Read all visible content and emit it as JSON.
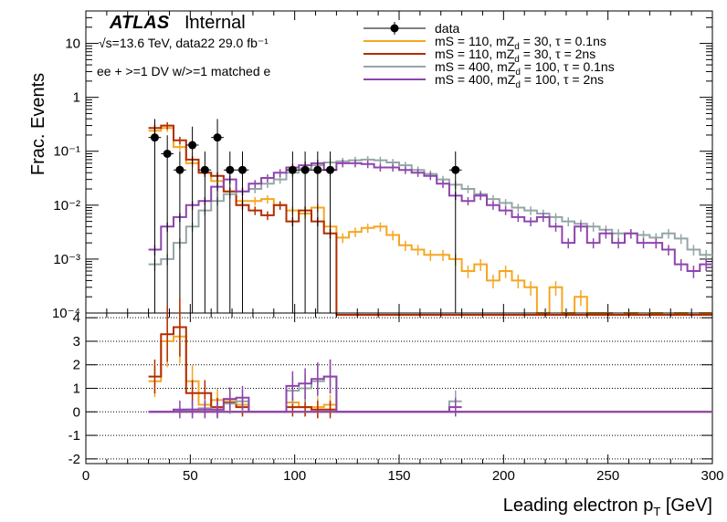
{
  "labels": {
    "atlas": "ATLAS",
    "internal": "Internal",
    "energy_lumi": "√s=13.6 TeV, data22 29.0 fb⁻¹",
    "selection": "ee + >=1 DV w/>=1 matched e",
    "ylabel": "Frac. Events",
    "xlabel": "Leading electron p",
    "xlabel_sub": "T",
    "xlabel_unit": " [GeV]"
  },
  "chart_data": [
    {
      "type": "line",
      "panel": "main",
      "ylabel": "Frac. Events",
      "log_y": true,
      "xlim": [
        0,
        300
      ],
      "ylim": [
        0.0001,
        40
      ],
      "yticks": [
        {
          "v": 0.0001,
          "label": "10⁻⁴"
        },
        {
          "v": 0.001,
          "label": "10⁻³"
        },
        {
          "v": 0.01,
          "label": "10⁻²"
        },
        {
          "v": 0.1,
          "label": "10⁻¹"
        },
        {
          "v": 1,
          "label": "1"
        },
        {
          "v": 10,
          "label": "10"
        }
      ],
      "bin_width": 6,
      "legend_position": "top-right",
      "series": [
        {
          "name": "data",
          "kind": "points",
          "color": "#000000",
          "x": [
            33,
            39,
            45,
            51,
            57,
            63,
            69,
            75,
            99,
            105,
            111,
            117,
            177
          ],
          "y": [
            0.18,
            0.09,
            0.045,
            0.13,
            0.045,
            0.18,
            0.045,
            0.045,
            0.045,
            0.045,
            0.045,
            0.045,
            0.045
          ]
        },
        {
          "name": "mS = 110, mZd = 30, τ = 0.1ns",
          "legend_main": "mS = 110, mZ",
          "legend_sub": "d",
          "legend_rest": " = 30, τ = 0.1ns",
          "kind": "hist",
          "color": "#f5a623",
          "x": [
            33,
            39,
            45,
            51,
            57,
            63,
            69,
            75,
            81,
            87,
            93,
            99,
            105,
            111,
            117,
            123,
            129,
            135,
            141,
            147,
            153,
            159,
            165,
            171,
            177,
            183,
            189,
            195,
            201,
            207,
            213,
            219,
            225,
            231,
            237,
            243,
            249,
            255,
            261,
            267,
            273,
            279,
            285,
            291,
            297
          ],
          "y": [
            0.24,
            0.27,
            0.12,
            0.06,
            0.04,
            0.028,
            0.018,
            0.012,
            0.012,
            0.013,
            0.01,
            0.008,
            0.007,
            0.009,
            0.004,
            0.0025,
            0.0032,
            0.0038,
            0.004,
            0.0028,
            0.0018,
            0.0015,
            0.0012,
            0.0012,
            0.001,
            0.0006,
            0.0008,
            0.0004,
            0.0006,
            0.0004,
            0.0003,
            0.0001,
            0.0003,
            0.0001,
            0.0002,
            0.0001,
            0.0001,
            8e-05,
            0.0001,
            8e-05,
            0.0001,
            8e-05,
            0.0001,
            8e-05,
            0.0001
          ]
        },
        {
          "name": "mS = 110, mZd = 30, τ = 2ns",
          "legend_main": "mS = 110, mZ",
          "legend_sub": "d",
          "legend_rest": " = 30, τ = 2ns",
          "kind": "hist",
          "color": "#b32d00",
          "x": [
            33,
            39,
            45,
            51,
            57,
            63,
            69,
            75,
            81,
            87,
            93,
            99,
            105,
            111,
            117,
            123,
            129,
            135,
            141,
            147,
            153,
            159,
            165,
            171,
            177,
            183,
            189,
            195,
            201,
            207,
            213,
            219,
            225,
            231,
            237,
            243,
            249,
            255,
            261,
            267,
            273,
            279,
            285,
            291,
            297
          ],
          "y": [
            0.27,
            0.3,
            0.16,
            0.07,
            0.04,
            0.035,
            0.018,
            0.01,
            0.008,
            0.0065,
            0.01,
            0.005,
            0.008,
            0.005,
            0.003,
            8e-05,
            8e-05,
            8e-05,
            8e-05,
            8e-05,
            8e-05,
            8e-05,
            8e-05,
            8e-05,
            8e-05,
            8e-05,
            8e-05,
            8e-05,
            8e-05,
            8e-05,
            8e-05,
            8e-05,
            8e-05,
            8e-05,
            8e-05,
            8e-05,
            8e-05,
            8e-05,
            8e-05,
            8e-05,
            8e-05,
            8e-05,
            8e-05,
            8e-05,
            8e-05
          ]
        },
        {
          "name": "mS = 400, mZd = 100, τ = 0.1ns",
          "legend_main": "mS = 400, mZ",
          "legend_sub": "d",
          "legend_rest": " = 100, τ = 0.1ns",
          "kind": "hist",
          "color": "#95a5a6",
          "x": [
            33,
            39,
            45,
            51,
            57,
            63,
            69,
            75,
            81,
            87,
            93,
            99,
            105,
            111,
            117,
            123,
            129,
            135,
            141,
            147,
            153,
            159,
            165,
            171,
            177,
            183,
            189,
            195,
            201,
            207,
            213,
            219,
            225,
            231,
            237,
            243,
            249,
            255,
            261,
            267,
            273,
            279,
            285,
            291,
            297
          ],
          "y": [
            0.0008,
            0.001,
            0.002,
            0.004,
            0.008,
            0.012,
            0.016,
            0.018,
            0.02,
            0.025,
            0.03,
            0.04,
            0.048,
            0.055,
            0.062,
            0.065,
            0.068,
            0.07,
            0.068,
            0.062,
            0.055,
            0.045,
            0.038,
            0.03,
            0.024,
            0.02,
            0.016,
            0.013,
            0.011,
            0.009,
            0.008,
            0.007,
            0.006,
            0.005,
            0.0045,
            0.004,
            0.0035,
            0.003,
            0.003,
            0.0028,
            0.0025,
            0.003,
            0.0024,
            0.0015,
            0.0012
          ]
        },
        {
          "name": "mS = 400, mZd = 100, τ = 2ns",
          "legend_main": "mS = 400, mZ",
          "legend_sub": "d",
          "legend_rest": " = 100, τ = 2ns",
          "kind": "hist",
          "color": "#8e44ad",
          "x": [
            33,
            39,
            45,
            51,
            57,
            63,
            69,
            75,
            81,
            87,
            93,
            99,
            105,
            111,
            117,
            123,
            129,
            135,
            141,
            147,
            153,
            159,
            165,
            171,
            177,
            183,
            189,
            195,
            201,
            207,
            213,
            219,
            225,
            231,
            237,
            243,
            249,
            255,
            261,
            267,
            273,
            279,
            285,
            291,
            297
          ],
          "y": [
            0.0015,
            0.004,
            0.006,
            0.01,
            0.012,
            0.022,
            0.03,
            0.018,
            0.025,
            0.032,
            0.04,
            0.05,
            0.055,
            0.06,
            0.045,
            0.06,
            0.06,
            0.058,
            0.05,
            0.05,
            0.045,
            0.04,
            0.035,
            0.025,
            0.015,
            0.012,
            0.015,
            0.01,
            0.008,
            0.006,
            0.005,
            0.006,
            0.004,
            0.002,
            0.004,
            0.002,
            0.003,
            0.002,
            0.003,
            0.002,
            0.002,
            0.0015,
            0.0008,
            0.0006,
            0.0008
          ]
        }
      ]
    },
    {
      "type": "line",
      "panel": "ratio",
      "xlabel": "Leading electron pT [GeV]",
      "xlim": [
        0,
        300
      ],
      "ylim": [
        -2.2,
        4.2
      ],
      "yticks": [
        -2,
        -1,
        0,
        1,
        2,
        3,
        4
      ],
      "xticks": [
        0,
        50,
        100,
        150,
        200,
        250,
        300
      ],
      "grid": "horizontal dotted",
      "bin_width": 6,
      "series": [
        {
          "name": "mS = 110, mZd = 30, τ = 0.1ns",
          "kind": "hist",
          "color": "#f5a623",
          "x": [
            33,
            39,
            45,
            51,
            57,
            63,
            69,
            75,
            81,
            87,
            93,
            99,
            105,
            111,
            117,
            123,
            129,
            135,
            141,
            147,
            153,
            159,
            165,
            171,
            177
          ],
          "y": [
            1.3,
            3.0,
            3.2,
            1.3,
            0.3,
            0.5,
            0.5,
            0.3,
            0,
            0,
            0,
            0.4,
            0.2,
            0.2,
            0.3,
            0,
            0,
            0,
            0,
            0,
            0,
            0,
            0,
            0,
            0
          ]
        },
        {
          "name": "mS = 110, mZd = 30, τ = 2ns",
          "kind": "hist",
          "color": "#b32d00",
          "x": [
            33,
            39,
            45,
            51,
            57,
            63,
            69,
            75,
            81,
            87,
            93,
            99,
            105,
            111,
            117,
            123,
            129,
            135,
            141,
            147,
            153,
            159,
            165,
            171,
            177
          ],
          "y": [
            1.5,
            3.3,
            3.6,
            0.8,
            0.8,
            0.2,
            0.4,
            0.2,
            0,
            0,
            0,
            0.2,
            0.2,
            0.1,
            0.1,
            0,
            0,
            0,
            0,
            0,
            0,
            0,
            0,
            0,
            0
          ]
        },
        {
          "name": "mS = 400, mZd = 100, τ = 0.1ns",
          "kind": "hist",
          "color": "#95a5a6",
          "x": [
            33,
            39,
            45,
            51,
            57,
            63,
            69,
            75,
            81,
            87,
            93,
            99,
            105,
            111,
            117,
            123,
            129,
            135,
            141,
            147,
            153,
            159,
            165,
            171,
            177
          ],
          "y": [
            0,
            0,
            0.05,
            0.1,
            0.15,
            0.1,
            0.35,
            0.45,
            0,
            0,
            0,
            0.9,
            1.0,
            1.3,
            1.5,
            0,
            0,
            0,
            0,
            0,
            0,
            0,
            0,
            0,
            0.45
          ]
        },
        {
          "name": "mS = 400, mZd = 100, τ = 2ns",
          "kind": "hist",
          "color": "#8e44ad",
          "x": [
            33,
            39,
            45,
            51,
            57,
            63,
            69,
            75,
            81,
            87,
            93,
            99,
            105,
            111,
            117,
            123,
            129,
            135,
            141,
            147,
            153,
            159,
            165,
            171,
            177
          ],
          "y": [
            0,
            0,
            0.1,
            0.1,
            0.1,
            0.1,
            0.55,
            0.6,
            0,
            0,
            0,
            1.1,
            1.2,
            1.4,
            1.5,
            0,
            0,
            0,
            0,
            0,
            0,
            0,
            0,
            0,
            0.2
          ]
        }
      ]
    }
  ]
}
